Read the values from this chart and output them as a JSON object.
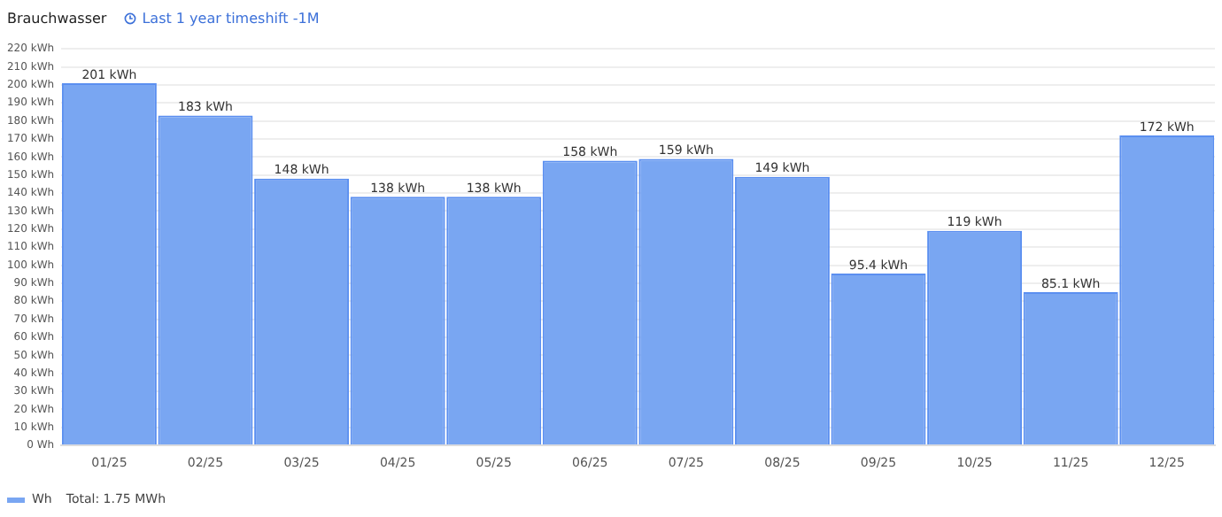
{
  "chart_data": {
    "type": "bar",
    "title": "Brauchwasser",
    "subtitle": "Last 1 year timeshift -1M",
    "categories": [
      "01/25",
      "02/25",
      "03/25",
      "04/25",
      "05/25",
      "06/25",
      "07/25",
      "08/25",
      "09/25",
      "10/25",
      "11/25",
      "12/25"
    ],
    "series": [
      {
        "name": "Wh",
        "color": "#79a6f2",
        "values": [
          201,
          183,
          148,
          138,
          138,
          158,
          159,
          149,
          95.4,
          119,
          85.1,
          172
        ],
        "value_labels": [
          "201 kWh",
          "183 kWh",
          "148 kWh",
          "138 kWh",
          "138 kWh",
          "158 kWh",
          "159 kWh",
          "149 kWh",
          "95.4 kWh",
          "119 kWh",
          "85.1 kWh",
          "172 kWh"
        ]
      }
    ],
    "ylim": [
      0,
      220
    ],
    "yticks": [
      {
        "value": 0,
        "label": "0 Wh"
      },
      {
        "value": 10,
        "label": "10 kWh"
      },
      {
        "value": 20,
        "label": "20 kWh"
      },
      {
        "value": 30,
        "label": "30 kWh"
      },
      {
        "value": 40,
        "label": "40 kWh"
      },
      {
        "value": 50,
        "label": "50 kWh"
      },
      {
        "value": 60,
        "label": "60 kWh"
      },
      {
        "value": 70,
        "label": "70 kWh"
      },
      {
        "value": 80,
        "label": "80 kWh"
      },
      {
        "value": 90,
        "label": "90 kWh"
      },
      {
        "value": 100,
        "label": "100 kWh"
      },
      {
        "value": 110,
        "label": "110 kWh"
      },
      {
        "value": 120,
        "label": "120 kWh"
      },
      {
        "value": 130,
        "label": "130 kWh"
      },
      {
        "value": 140,
        "label": "140 kWh"
      },
      {
        "value": 150,
        "label": "150 kWh"
      },
      {
        "value": 160,
        "label": "160 kWh"
      },
      {
        "value": 170,
        "label": "170 kWh"
      },
      {
        "value": 180,
        "label": "180 kWh"
      },
      {
        "value": 190,
        "label": "190 kWh"
      },
      {
        "value": 200,
        "label": "200 kWh"
      },
      {
        "value": 210,
        "label": "210 kWh"
      },
      {
        "value": 220,
        "label": "220 kWh"
      }
    ],
    "grid": "y",
    "legend": "bottom left",
    "annotations": [
      "Total: 1.75 MWh"
    ]
  }
}
